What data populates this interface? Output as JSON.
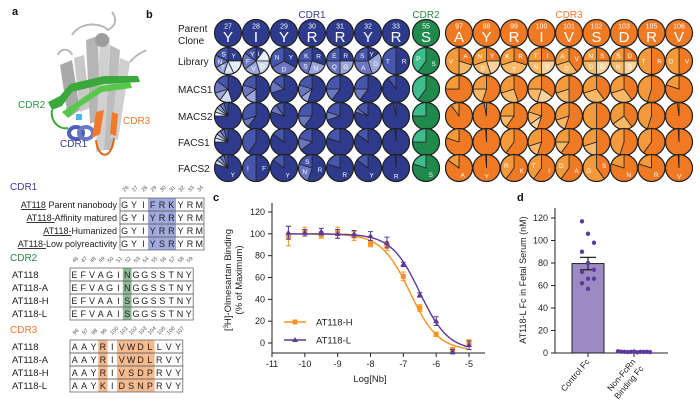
{
  "panels": {
    "a": "a",
    "b": "b",
    "c": "c",
    "d": "d"
  },
  "colors": {
    "cdr1": "#3b3f95",
    "cdr2": "#2a8a47",
    "cdr3": "#f07a2a",
    "cdr1_shades": [
      "#2e3a8c",
      "#4656ad",
      "#6a76c2",
      "#9aa6dc",
      "#cfdcf3",
      "#e6eefa"
    ],
    "cdr2_shades": [
      "#1f8a4c",
      "#3dbd8c"
    ],
    "cdr3_shades": [
      "#f07a24",
      "#f59a3a",
      "#f8b866",
      "#fbd39e"
    ],
    "highlight1": "#9ea8dc",
    "highlight2": "#8fb995",
    "highlight3": "#f5b98e",
    "series_h": "#f7941d",
    "series_l": "#5b3a9a",
    "bar": "#9b8ac4",
    "dots": "#5b3a9a"
  },
  "structure": {
    "labels": {
      "cdr1": "CDR1",
      "cdr2": "CDR2",
      "cdr3": "CDR3"
    }
  },
  "library": {
    "group_labels": {
      "cdr1": "CDR1",
      "cdr2": "CDR2",
      "cdr3": "CDR3"
    },
    "row_labels": {
      "parent_line1": "Parent",
      "parent_line2": "Clone",
      "library": "Library",
      "macs1": "MACS1",
      "macs2": "MACS2",
      "facs1": "FACS1",
      "facs2": "FACS2"
    },
    "columns": [
      {
        "group": "cdr1",
        "pos": "27",
        "res": "Y"
      },
      {
        "group": "cdr1",
        "pos": "28",
        "res": "I"
      },
      {
        "group": "cdr1",
        "pos": "29",
        "res": "Y"
      },
      {
        "group": "cdr1",
        "pos": "30",
        "res": "R"
      },
      {
        "group": "cdr1",
        "pos": "31",
        "res": "R"
      },
      {
        "group": "cdr1",
        "pos": "32",
        "res": "Y"
      },
      {
        "group": "cdr1",
        "pos": "33",
        "res": "R"
      },
      {
        "group": "cdr2",
        "pos": "55",
        "res": "S"
      },
      {
        "group": "cdr3",
        "pos": "97",
        "res": "A"
      },
      {
        "group": "cdr3",
        "pos": "98",
        "res": "Y"
      },
      {
        "group": "cdr3",
        "pos": "99",
        "res": "R"
      },
      {
        "group": "cdr3",
        "pos": "100",
        "res": "I"
      },
      {
        "group": "cdr3",
        "pos": "101",
        "res": "V"
      },
      {
        "group": "cdr3",
        "pos": "102",
        "res": "S"
      },
      {
        "group": "cdr3",
        "pos": "103",
        "res": "D"
      },
      {
        "group": "cdr3",
        "pos": "105",
        "res": "R"
      },
      {
        "group": "cdr3",
        "pos": "106",
        "res": "V"
      }
    ],
    "rows": {
      "library": [
        [
          [
            "Y",
            0.25
          ],
          [
            "S",
            0.18
          ],
          [
            "N",
            0.15
          ],
          [
            "T",
            0.12
          ],
          [
            "A",
            0.12
          ],
          [
            "",
            0.18
          ]
        ],
        [
          [
            "I",
            0.1
          ],
          [
            "Y",
            0.15
          ],
          [
            "F",
            0.2
          ],
          [
            "V",
            0.2
          ],
          [
            "D",
            0.2
          ],
          [
            "",
            0.15
          ]
        ],
        [
          [
            "Y",
            0.33
          ],
          [
            "N",
            0.33
          ],
          [
            "D",
            0.34
          ]
        ],
        [
          [
            "R",
            0.3
          ],
          [
            "K",
            0.25
          ],
          [
            "S",
            0.2
          ],
          [
            "N",
            0.25
          ]
        ],
        [
          [
            "R",
            0.25
          ],
          [
            "E",
            0.25
          ],
          [
            "Q",
            0.25
          ],
          [
            "G",
            0.25
          ]
        ],
        [
          [
            "Y",
            0.15
          ],
          [
            "S",
            0.25
          ],
          [
            "A",
            0.3
          ],
          [
            "D",
            0.3
          ]
        ],
        [
          [
            "R",
            0.5
          ],
          [
            "T",
            0.5
          ]
        ],
        [
          [
            "S",
            0.6
          ],
          [
            "P",
            0.4
          ]
        ],
        [
          [
            "A",
            0.3
          ],
          [
            "V",
            0.5
          ],
          [
            "",
            0.2
          ]
        ],
        [
          [
            "Y",
            0.25
          ],
          [
            "N",
            0.3
          ],
          [
            "D",
            0.25
          ],
          [
            "",
            0.2
          ]
        ],
        [
          [
            "R",
            0.3
          ],
          [
            "K",
            0.3
          ],
          [
            "T",
            0.4
          ]
        ],
        [
          [
            "I",
            0.25
          ],
          [
            "T",
            0.25
          ],
          [
            "N",
            0.25
          ],
          [
            "S",
            0.25
          ]
        ],
        [
          [
            "V",
            0.4
          ],
          [
            "A",
            0.3
          ],
          [
            "D",
            0.3
          ]
        ],
        [
          [
            "S",
            0.25
          ],
          [
            "N",
            0.25
          ],
          [
            "D",
            0.25
          ],
          [
            "G",
            0.25
          ]
        ],
        [
          [
            "D",
            0.25
          ],
          [
            "S",
            0.25
          ],
          [
            "N",
            0.25
          ],
          [
            "G",
            0.25
          ]
        ],
        [
          [
            "R",
            0.5
          ],
          [
            "T",
            0.5
          ]
        ],
        [
          [
            "V",
            0.5
          ],
          [
            "D",
            0.5
          ]
        ]
      ],
      "macs1": [
        [
          0.45,
          0.15,
          0.15,
          0.1,
          0.15
        ],
        [
          0.5,
          0.2,
          0.15,
          0.15
        ],
        [
          0.7,
          0.15,
          0.15
        ],
        [
          0.55,
          0.2,
          0.15,
          0.1
        ],
        [
          0.6,
          0.25,
          0.15
        ],
        [
          0.6,
          0.25,
          0.15
        ],
        [
          0.9,
          0.1
        ],
        [
          0.6,
          0.4
        ],
        [
          0.75,
          0.25
        ],
        [
          0.55,
          0.25,
          0.2
        ],
        [
          0.45,
          0.3,
          0.25
        ],
        [
          0.35,
          0.25,
          0.2,
          0.2
        ],
        [
          0.5,
          0.3,
          0.2
        ],
        [
          0.4,
          0.3,
          0.3
        ],
        [
          0.4,
          0.3,
          0.3
        ],
        [
          0.55,
          0.45
        ],
        [
          0.8,
          0.2
        ]
      ],
      "macs2": [
        [
          0.75,
          0.05,
          0.05,
          0.05,
          0.05,
          0.05
        ],
        [
          0.6,
          0.3,
          0.1
        ],
        [
          0.8,
          0.1,
          0.1
        ],
        [
          0.6,
          0.25,
          0.15
        ],
        [
          0.7,
          0.2,
          0.1
        ],
        [
          0.8,
          0.15,
          0.05
        ],
        [
          0.97,
          0.03
        ],
        [
          0.75,
          0.25
        ],
        [
          0.9,
          0.1
        ],
        [
          0.97,
          0.03
        ],
        [
          0.6,
          0.25,
          0.15
        ],
        [
          0.55,
          0.2,
          0.15,
          0.1
        ],
        [
          0.55,
          0.3,
          0.15
        ],
        [
          0.5,
          0.5
        ],
        [
          0.4,
          0.35,
          0.25
        ],
        [
          0.55,
          0.45
        ],
        [
          0.98,
          0.02
        ]
      ],
      "facs1": [
        [
          0.75,
          0.05,
          0.05,
          0.05,
          0.05,
          0.05
        ],
        [
          0.6,
          0.4
        ],
        [
          0.85,
          0.15
        ],
        [
          0.65,
          0.2,
          0.15
        ],
        [
          0.8,
          0.2
        ],
        [
          0.85,
          0.15
        ],
        [
          0.99,
          0.01
        ],
        [
          0.75,
          0.25
        ],
        [
          0.8,
          0.2
        ],
        [
          0.99,
          0.01
        ],
        [
          0.6,
          0.4
        ],
        [
          0.55,
          0.3,
          0.15
        ],
        [
          0.6,
          0.25,
          0.15
        ],
        [
          0.5,
          0.3,
          0.2
        ],
        [
          0.55,
          0.45
        ],
        [
          0.6,
          0.4
        ],
        [
          0.99,
          0.01
        ]
      ],
      "facs2": [
        [
          [
            "Y",
            0.8
          ],
          [
            "",
            0.05
          ],
          [
            "",
            0.05
          ],
          [
            "",
            0.05
          ],
          [
            "",
            0.05
          ]
        ],
        [
          [
            "F",
            0.5
          ],
          [
            "I",
            0.5
          ]
        ],
        [
          [
            "Y",
            0.85
          ],
          [
            "",
            0.15
          ]
        ],
        [
          [
            "R",
            0.55
          ],
          [
            "S",
            0.2
          ],
          [
            "N",
            0.25
          ]
        ],
        [
          [
            "R",
            0.8
          ],
          [
            "",
            0.2
          ]
        ],
        [
          [
            "Y",
            0.85
          ],
          [
            "",
            0.15
          ]
        ],
        [
          [
            "R",
            0.99
          ],
          [
            "",
            0.01
          ]
        ],
        [
          [
            "S",
            0.8
          ],
          [
            "",
            0.2
          ]
        ],
        [
          [
            "A",
            0.85
          ],
          [
            "",
            0.15
          ]
        ],
        [
          [
            "Y",
            0.99
          ],
          [
            "",
            0.01
          ]
        ],
        [
          [
            "K",
            0.6
          ],
          [
            "R",
            0.4
          ]
        ],
        [
          [
            "I",
            0.6
          ],
          [
            "T",
            0.4
          ]
        ],
        [
          [
            "A",
            0.6
          ],
          [
            "D",
            0.4
          ]
        ],
        [
          [
            "S",
            0.4
          ],
          [
            "G",
            0.6
          ]
        ],
        [
          [
            "N",
            0.8
          ],
          [
            "",
            0.2
          ]
        ],
        [
          [
            "R",
            0.8
          ],
          [
            "",
            0.2
          ]
        ],
        [
          [
            "V",
            0.99
          ],
          [
            "",
            0.01
          ]
        ]
      ]
    }
  },
  "alignments": [
    {
      "title": "CDR1",
      "color_key": "cdr1",
      "numbers": [
        "26",
        "27",
        "28",
        "29",
        "30",
        "31",
        "32",
        "33",
        "34"
      ],
      "highlight": [
        3,
        4,
        5
      ],
      "rows": [
        {
          "name_u": "AT118",
          "name_rest": " Parent nanobody",
          "seq": "GYIFRKYRM"
        },
        {
          "name_u": "AT118-",
          "name_rest": "Affinity matured",
          "seq": "GYIYRRYRM"
        },
        {
          "name_u": "AT118-",
          "name_rest": "Humanized",
          "seq": "GYIYRRYRM"
        },
        {
          "name_u": "AT118-",
          "name_rest": "Low polyreactivity",
          "seq": "GYIYSRYRM"
        }
      ]
    },
    {
      "title": "CDR2",
      "color_key": "cdr2",
      "numbers": [
        "46",
        "47",
        "48",
        "49",
        "50",
        "51",
        "52",
        "53",
        "54",
        "55",
        "56",
        "57",
        "58",
        "59"
      ],
      "highlight": [
        6
      ],
      "rows": [
        {
          "name_u": "",
          "name_rest": "AT118",
          "seq": "EFVAGINGGSSTNY"
        },
        {
          "name_u": "",
          "name_rest": "AT118-A",
          "seq": "EFVAGINGGSSTNY"
        },
        {
          "name_u": "",
          "name_rest": "AT118-H",
          "seq": "EFVAAISGGSSTNY"
        },
        {
          "name_u": "",
          "name_rest": "AT118-L",
          "seq": "EFVAAISGGSSTNY"
        }
      ]
    },
    {
      "title": "CDR3",
      "color_key": "cdr3",
      "numbers": [
        "96",
        "97",
        "98",
        "99",
        "100",
        "101",
        "102",
        "103",
        "104",
        "105",
        "106",
        "107"
      ],
      "highlight": [
        3,
        5,
        6,
        7,
        8
      ],
      "rows": [
        {
          "name_u": "",
          "name_rest": "AT118",
          "seq": "AAYRIVWDLLVY"
        },
        {
          "name_u": "",
          "name_rest": "AT118-A",
          "seq": "AAYRIVWDLRVY"
        },
        {
          "name_u": "",
          "name_rest": "AT118-H",
          "seq": "AAYRIVSDPRVY"
        },
        {
          "name_u": "",
          "name_rest": "AT118-L",
          "seq": "AAYKIDSNPRVY"
        }
      ]
    }
  ],
  "chart_data": [
    {
      "type": "line",
      "title": "",
      "xlabel": "Log[Nb]",
      "ylabel_line1": "[3H]-Olmesartan Binding",
      "ylabel_sup": "3",
      "ylabel_pre": "[",
      "ylabel_post": "H]-Olmesartan Binding",
      "ylabel_line2": "(% of Maximum)",
      "xlim": [
        -11,
        -4.5
      ],
      "ylim": [
        -10,
        125
      ],
      "xticks": [
        "-11",
        "-10",
        "-9",
        "-8",
        "-7",
        "-6",
        "-5"
      ],
      "yticks": [
        "0",
        "20",
        "40",
        "60",
        "80",
        "100",
        "120"
      ],
      "legend": "bottom-left",
      "x": [
        -10.5,
        -10,
        -9.5,
        -9,
        -8.5,
        -8,
        -7.5,
        -7,
        -6.5,
        -6,
        -5.5,
        -5
      ],
      "series": [
        {
          "name": "AT118-H",
          "marker": "square",
          "values": [
            98,
            102,
            99,
            101,
            98,
            91,
            89,
            61,
            32,
            8,
            -6,
            0
          ],
          "err": [
            9,
            4,
            3,
            5,
            4,
            3,
            4,
            4,
            3,
            2,
            2,
            3
          ],
          "fit": {
            "top": 100,
            "bottom": -7,
            "logIC50": -6.8
          }
        },
        {
          "name": "AT118-L",
          "marker": "triangle",
          "values": [
            101,
            101,
            102,
            100,
            100,
            98,
            92,
            72,
            44,
            20,
            -8,
            -2
          ],
          "err": [
            6,
            3,
            3,
            4,
            3,
            4,
            5,
            2,
            2,
            4,
            2,
            4
          ],
          "fit": {
            "top": 100,
            "bottom": -7,
            "logIC50": -6.5
          }
        }
      ]
    },
    {
      "type": "bar",
      "ylabel": "AT118-L Fc in Fetal Serum (nM)",
      "ylim": [
        0,
        125
      ],
      "yticks": [
        "0",
        "20",
        "40",
        "60",
        "80",
        "100",
        "120"
      ],
      "categories": [
        "Control Fc",
        "Non-FcRn Binding Fc"
      ],
      "category_lines": [
        [
          "Control Fc"
        ],
        [
          "Non-FcRn",
          "Binding Fc"
        ]
      ],
      "values": [
        79.5,
        1
      ],
      "sem": [
        5.5,
        0.3
      ],
      "points": [
        [
          117,
          106,
          98,
          90,
          80,
          74,
          72,
          66,
          66,
          62,
          57
        ],
        [
          1.5,
          1.2,
          1,
          0.8,
          1,
          1.3,
          0.6,
          1,
          0.9,
          1.1,
          0.8
        ]
      ]
    }
  ]
}
